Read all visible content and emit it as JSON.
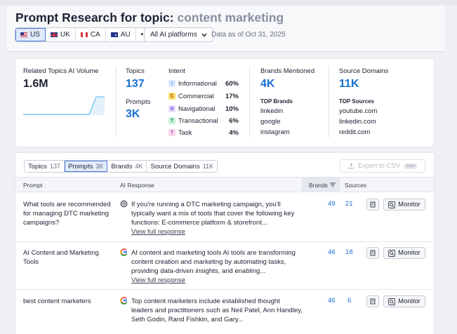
{
  "header": {
    "title_prefix": "Prompt Research for topic:",
    "topic": "content marketing",
    "countries": [
      {
        "code": "US",
        "flag": "flag-us"
      },
      {
        "code": "UK",
        "flag": "flag-uk"
      },
      {
        "code": "CA",
        "flag": "flag-ca"
      },
      {
        "code": "AU",
        "flag": "flag-au"
      }
    ],
    "more": "•••",
    "platform_select": "All AI platforms",
    "data_as_of": "Data as of Oct 31, 2025"
  },
  "stats": {
    "volume_label": "Related Topics AI Volume",
    "volume_value": "1.6M",
    "topics_label": "Topics",
    "topics_value": "137",
    "prompts_label": "Prompts",
    "prompts_value": "3K",
    "intent_label": "Intent",
    "intents": [
      {
        "letter": "I",
        "name": "Informational",
        "pct": "60%",
        "color": "#5b8ff0",
        "bg": "#dbe7ff"
      },
      {
        "letter": "C",
        "name": "Commercial",
        "pct": "17%",
        "color": "#b07a00",
        "bg": "#ffd86b"
      },
      {
        "letter": "N",
        "name": "Navigational",
        "pct": "10%",
        "color": "#7c4ad8",
        "bg": "#e6dcfb"
      },
      {
        "letter": "T",
        "name": "Transactional",
        "pct": "6%",
        "color": "#1e8c56",
        "bg": "#c9f0dc"
      },
      {
        "letter": "T",
        "name": "Task",
        "pct": "4%",
        "color": "#c04aa8",
        "bg": "#f8d8f0"
      }
    ],
    "brands_label": "Brands Mentioned",
    "brands_value": "4K",
    "top_brands_label": "TOP Brands",
    "top_brands": [
      "linkedin",
      "google",
      "instagram"
    ],
    "sources_label": "Source Domains",
    "sources_value": "11K",
    "top_sources_label": "TOP Sources",
    "top_sources": [
      "youtube.com",
      "linkedin.com",
      "reddit.com"
    ]
  },
  "table": {
    "tabs": [
      {
        "label": "Topics",
        "count": "137"
      },
      {
        "label": "Prompts",
        "count": "3K"
      },
      {
        "label": "Brands",
        "count": "4K"
      },
      {
        "label": "Source Domains",
        "count": "11K"
      }
    ],
    "export_label": "Export to CSV",
    "export_badge": "soon",
    "columns": {
      "prompt": "Prompt",
      "response": "AI Response",
      "brands": "Brands",
      "sources": "Sources"
    },
    "view_label": "View full response",
    "monitor_label": "Monitor",
    "rows": [
      {
        "prompt": "What tools are recommended for managing DTC marketing campaigns?",
        "source_icon": "chatgpt-icon",
        "response": "If you're running a DTC marketing campaign, you'll typically want a mix of tools that cover the following key functions: E-commerce platform & storefront...",
        "brands": "49",
        "sources": "21"
      },
      {
        "prompt": "AI Content and Marketing Tools",
        "source_icon": "google-icon",
        "response": "AI content and marketing tools AI tools are transforming content creation and marketing by automating tasks, providing data-driven insights, and enabling...",
        "brands": "46",
        "sources": "18"
      },
      {
        "prompt": "best content marketers",
        "source_icon": "google-icon",
        "response": "Top content marketers include established thought leaders and practitioners such as Neil Patel, Ann Handley, Seth Godin, Rand Fishkin, and Gary...",
        "brands": "46",
        "sources": "6"
      }
    ]
  }
}
